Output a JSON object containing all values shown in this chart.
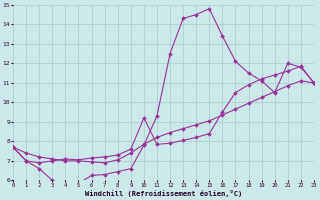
{
  "bg_color": "#cce8e8",
  "grid_color": "#aacccc",
  "line_color": "#993399",
  "xlim": [
    0,
    23
  ],
  "ylim": [
    6,
    15
  ],
  "xlabel": "Windchill (Refroidissement éolien,°C)",
  "line1_x": [
    0,
    1,
    2,
    3,
    4,
    5,
    6,
    7,
    8,
    9,
    10,
    11,
    12,
    13,
    14,
    15,
    16,
    17,
    18,
    19,
    20,
    21,
    22,
    23
  ],
  "line1_y": [
    7.7,
    7.0,
    6.6,
    6.0,
    5.9,
    5.85,
    6.25,
    6.3,
    6.45,
    6.6,
    7.8,
    9.3,
    12.5,
    14.3,
    14.5,
    14.8,
    13.4,
    12.1,
    11.5,
    11.1,
    10.5,
    12.0,
    11.8,
    11.0
  ],
  "line2_x": [
    0,
    1,
    2,
    3,
    4,
    5,
    6,
    7,
    8,
    9,
    10,
    11,
    12,
    13,
    14,
    15,
    16,
    17,
    18,
    19,
    20,
    21,
    22,
    23
  ],
  "line2_y": [
    7.7,
    7.0,
    6.9,
    7.0,
    7.1,
    7.05,
    7.15,
    7.2,
    7.3,
    7.6,
    9.2,
    7.85,
    7.9,
    8.05,
    8.2,
    8.4,
    9.5,
    10.5,
    10.9,
    11.2,
    11.4,
    11.6,
    11.85,
    11.0
  ],
  "line3_x": [
    0,
    1,
    2,
    3,
    4,
    5,
    6,
    7,
    8,
    9,
    10,
    11,
    12,
    13,
    14,
    15,
    16,
    17,
    18,
    19,
    20,
    21,
    22,
    23
  ],
  "line3_y": [
    7.7,
    7.4,
    7.2,
    7.1,
    7.0,
    7.0,
    6.95,
    6.9,
    7.05,
    7.4,
    7.85,
    8.2,
    8.45,
    8.65,
    8.85,
    9.05,
    9.35,
    9.65,
    9.95,
    10.25,
    10.55,
    10.85,
    11.1,
    11.0
  ],
  "markersize": 2.0,
  "linewidth": 0.8
}
